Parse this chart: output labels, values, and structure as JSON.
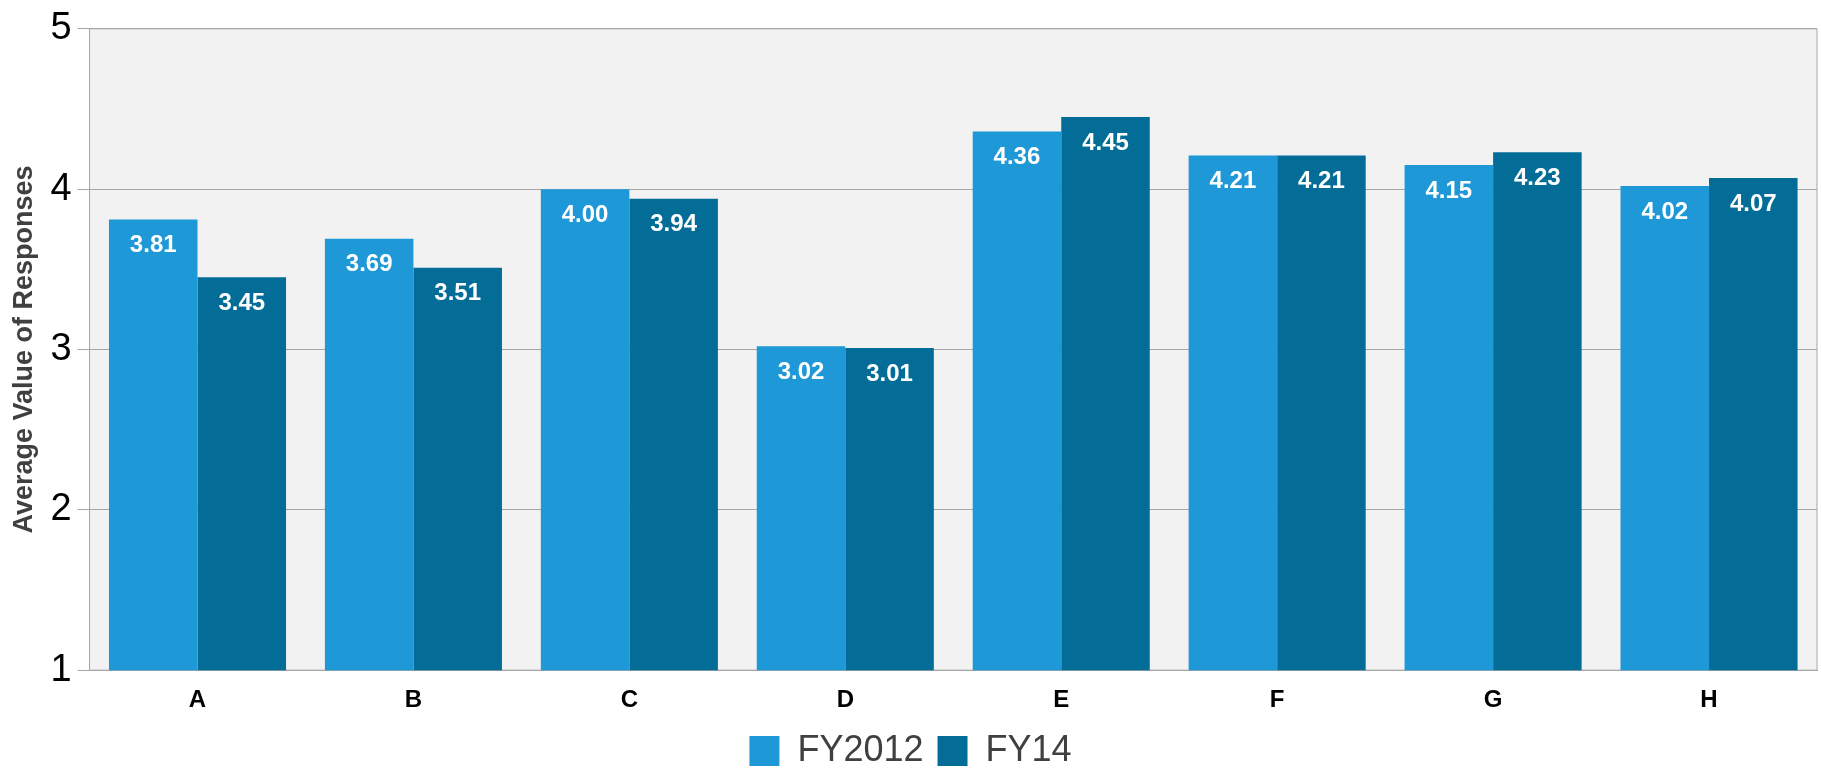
{
  "chart_data": {
    "type": "bar",
    "ylabel": "Average Value of Responses",
    "categories": [
      "A",
      "B",
      "C",
      "D",
      "E",
      "F",
      "G",
      "H"
    ],
    "series": [
      {
        "name": "FY2012",
        "color": "#1e98d6",
        "values": [
          3.81,
          3.69,
          4.0,
          3.02,
          4.36,
          4.21,
          4.15,
          4.02
        ],
        "value_labels": [
          "3.81",
          "3.69",
          "4.00",
          "3.02",
          "4.36",
          "4.21",
          "4.15",
          "4.02"
        ]
      },
      {
        "name": "FY14",
        "color": "#036d98",
        "values": [
          3.45,
          3.51,
          3.94,
          3.01,
          4.45,
          4.21,
          4.23,
          4.07
        ],
        "value_labels": [
          "3.45",
          "3.51",
          "3.94",
          "3.01",
          "4.45",
          "4.21",
          "4.23",
          "4.07"
        ]
      }
    ],
    "ylim": [
      1,
      5
    ],
    "yticks": [
      1,
      2,
      3,
      4,
      5
    ],
    "grid": "y",
    "legend": "bottom"
  }
}
